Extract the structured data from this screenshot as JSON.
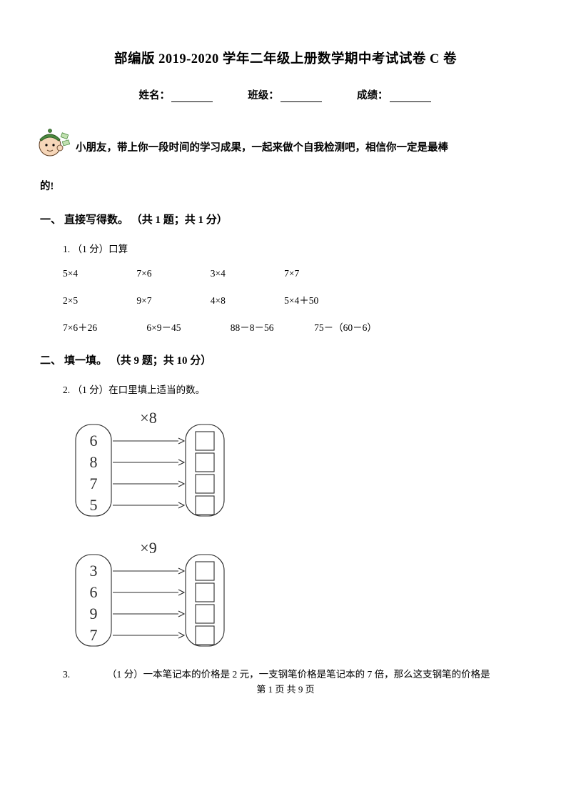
{
  "title": "部编版 2019-2020 学年二年级上册数学期中考试试卷 C 卷",
  "info": {
    "name_label": "姓名：",
    "class_label": "班级：",
    "score_label": "成绩："
  },
  "encourage": {
    "line1": "小朋友，带上你一段时间的学习成果，一起来做个自我检测吧，相信你一定是最棒",
    "line2": "的!"
  },
  "section1": {
    "head_num": "一、",
    "head_text": "直接写得数。",
    "head_meta": "（共 1 题；共 1 分）",
    "q1_label": "1.",
    "q1_meta": "（1 分）口算",
    "rows": [
      [
        "5×4",
        "7×6",
        "3×4",
        "7×7"
      ],
      [
        "2×5",
        "9×7",
        "4×8",
        "5×4＋50"
      ],
      [
        "7×6＋26",
        "6×9－45",
        "88－8－56",
        "75－（60－6）"
      ]
    ]
  },
  "section2": {
    "head_num": "二、",
    "head_text": "填一填。",
    "head_meta": "（共 9 题；共 10 分）",
    "q2_label": "2.",
    "q2_meta": "（1 分）在口里填上适当的数。",
    "diagram1": {
      "op": "×8",
      "inputs": [
        "6",
        "8",
        "7",
        "5"
      ]
    },
    "diagram2": {
      "op": "×9",
      "inputs": [
        "3",
        "6",
        "9",
        "7"
      ]
    },
    "q3_num": "3.",
    "q3_text": "（1 分）一本笔记本的价格是 2 元，一支钢笔价格是笔记本的 7 倍，那么这支钢笔的价格是"
  },
  "footer": "第 1 页 共 9 页",
  "style": {
    "text_color": "#000000",
    "background": "#ffffff",
    "title_fontsize": 18.5,
    "body_fontsize": 13.5,
    "section_head_fontsize": 15,
    "diagram_stroke": "#2a2a2a",
    "diagram_stroke_width": 1.1,
    "diagram_font_size": 22,
    "mascot_skin": "#f6d6b8",
    "mascot_hat": "#4a8a3e",
    "mascot_money": "#6aa84f"
  }
}
